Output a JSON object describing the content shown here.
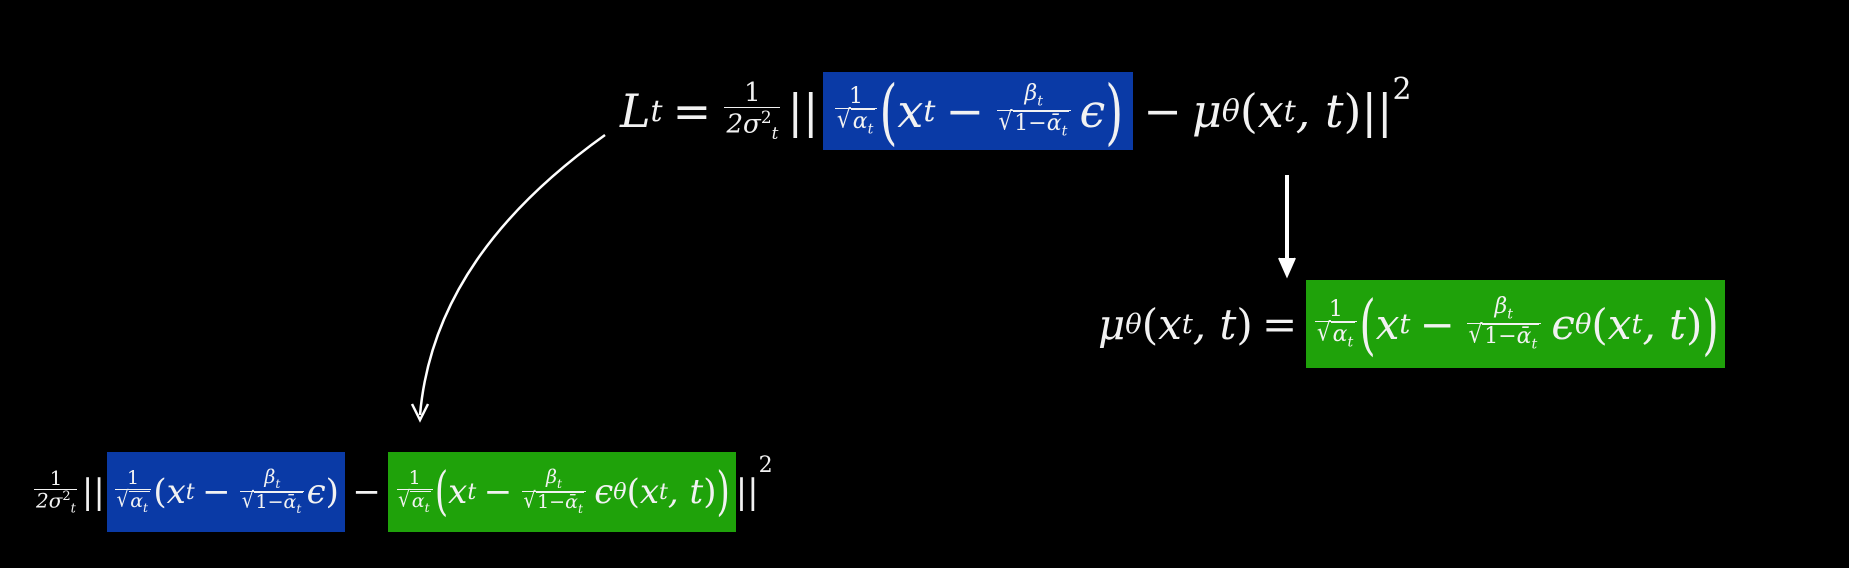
{
  "eq_top": {
    "L": "L",
    "t": "t",
    "eq": "=",
    "one": "1",
    "two_sigma": "2σ",
    "two": "2",
    "t2": "t",
    "bars": "||",
    "x": "x",
    "minus": "−",
    "beta": "β",
    "alpha": "α",
    "one_minus": "1−",
    "alpha_bar": "ᾱ",
    "eps": "ϵ",
    "mu": "μ",
    "theta": "θ",
    "comma_t": ", t",
    "sq": "2",
    "lpar": "(",
    "rpar": ")"
  },
  "eq_right": {
    "mu": "μ",
    "theta": "θ",
    "x": "x",
    "t": "t",
    "comma_t": ", t",
    "eq": "=",
    "one": "1",
    "alpha": "α",
    "minus": "−",
    "beta": "β",
    "one_minus": "1−",
    "alpha_bar": "ᾱ",
    "eps": "ϵ",
    "lpar": "(",
    "rpar": ")"
  },
  "eq_bottom": {
    "one": "1",
    "two_sigma": "2σ",
    "two": "2",
    "t": "t",
    "bars": "||",
    "alpha": "α",
    "x": "x",
    "minus": "−",
    "beta": "β",
    "one_minus": "1−",
    "alpha_bar": "ᾱ",
    "eps": "ϵ",
    "theta": "θ",
    "comma_t": ", t",
    "sq": "2",
    "lpar": "(",
    "rpar": ")"
  },
  "colors": {
    "background": "#000000",
    "blue_highlight": "#0a3aa6",
    "green_highlight": "#1fa20a",
    "text": "#f2f2f2"
  }
}
